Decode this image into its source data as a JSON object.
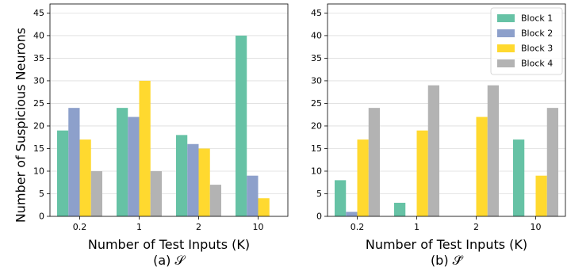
{
  "chart_data": {
    "shared": {
      "ylabel": "Number of Suspicious Neurons",
      "xlabel": "Number of Test Inputs (K)",
      "categories": [
        "0.2",
        "1",
        "2",
        "10"
      ],
      "ylim": [
        0,
        47
      ],
      "yticks": [
        0,
        5,
        10,
        15,
        20,
        25,
        30,
        35,
        40,
        45
      ],
      "grid": "horizontal",
      "series_names": [
        "Block 1",
        "Block 2",
        "Block 3",
        "Block 4"
      ],
      "colors": [
        "#66c2a5",
        "#8da0cb",
        "#ffd92f",
        "#b3b3b3"
      ]
    },
    "panels": [
      {
        "type": "bar",
        "caption": "(a) 𝒮",
        "legend": "none",
        "series": [
          {
            "name": "Block 1",
            "values": [
              19,
              24,
              18,
              40
            ]
          },
          {
            "name": "Block 2",
            "values": [
              24,
              22,
              16,
              9
            ]
          },
          {
            "name": "Block 3",
            "values": [
              17,
              30,
              15,
              4
            ]
          },
          {
            "name": "Block 4",
            "values": [
              10,
              10,
              7,
              0
            ]
          }
        ]
      },
      {
        "type": "bar",
        "caption": "(b) 𝒮̂",
        "legend": "top-right",
        "series": [
          {
            "name": "Block 1",
            "values": [
              8,
              3,
              0,
              17
            ]
          },
          {
            "name": "Block 2",
            "values": [
              1,
              0,
              0,
              0
            ]
          },
          {
            "name": "Block 3",
            "values": [
              17,
              19,
              22,
              9
            ]
          },
          {
            "name": "Block 4",
            "values": [
              24,
              29,
              29,
              24
            ]
          }
        ]
      }
    ]
  }
}
